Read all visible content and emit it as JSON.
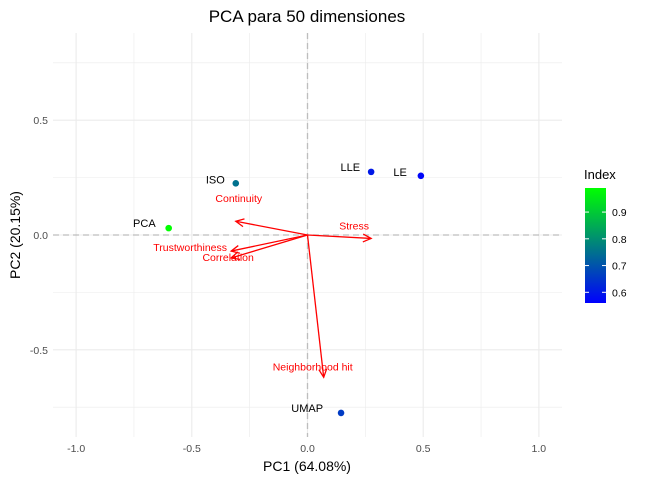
{
  "chart_data": {
    "type": "scatter",
    "title": "PCA para  50 dimensiones",
    "xlabel": "PC1 (64.08%)",
    "ylabel": "PC2 (20.15%)",
    "xlim": [
      -1.1,
      1.1
    ],
    "ylim": [
      -0.88,
      0.88
    ],
    "x_ticks": [
      {
        "value": -1.0,
        "label": "-1.0"
      },
      {
        "value": -0.5,
        "label": "-0.5"
      },
      {
        "value": 0.0,
        "label": "0.0"
      },
      {
        "value": 0.5,
        "label": "0.5"
      },
      {
        "value": 1.0,
        "label": "1.0"
      }
    ],
    "y_ticks": [
      {
        "value": -0.5,
        "label": "-0.5"
      },
      {
        "value": 0.0,
        "label": "0.0"
      },
      {
        "value": 0.5,
        "label": "0.5"
      }
    ],
    "grid": true,
    "points": [
      {
        "label": "PCA",
        "x": -0.6,
        "y": 0.03,
        "index": 0.99
      },
      {
        "label": "ISO",
        "x": -0.31,
        "y": 0.225,
        "index": 0.75
      },
      {
        "label": "LLE",
        "x": 0.275,
        "y": 0.275,
        "index": 0.6
      },
      {
        "label": "LE",
        "x": 0.49,
        "y": 0.258,
        "index": 0.57
      },
      {
        "label": "UMAP",
        "x": 0.145,
        "y": -0.775,
        "index": 0.66
      }
    ],
    "arrows": [
      {
        "label": "Continuity",
        "x": -0.31,
        "y": 0.06
      },
      {
        "label": "Stress",
        "x": 0.275,
        "y": -0.015
      },
      {
        "label": "Correlation",
        "x": -0.33,
        "y": -0.07
      },
      {
        "label": "Trustworthiness",
        "x": -0.33,
        "y": -0.1
      },
      {
        "label": "Neighborhood hit",
        "x": 0.07,
        "y": -0.62
      }
    ],
    "legend": {
      "title": "Index",
      "placement": "right",
      "range": [
        0.56,
        0.99
      ],
      "ticks": [
        {
          "value": 0.6,
          "label": "0.6"
        },
        {
          "value": 0.7,
          "label": "0.7"
        },
        {
          "value": 0.8,
          "label": "0.8"
        },
        {
          "value": 0.9,
          "label": "0.9"
        }
      ],
      "color_low": "#0000ff",
      "color_high": "#00ff00"
    },
    "colors": {
      "arrow": "#ff0000",
      "grid": "#ebebeb",
      "reference_line": "#bdbdbd"
    }
  }
}
